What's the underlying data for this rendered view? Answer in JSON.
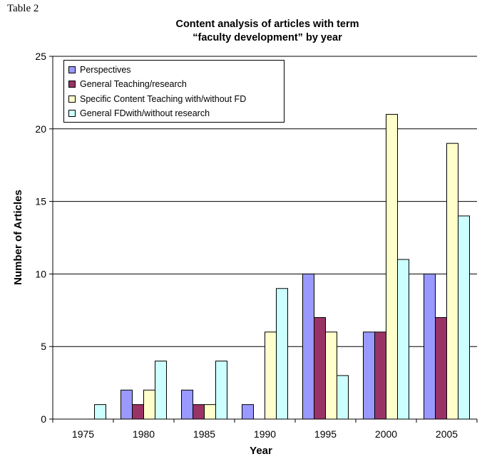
{
  "page_label": "Table 2",
  "chart_data": {
    "type": "bar",
    "title_line1": "Content analysis of articles with term",
    "title_line2": "“faculty development” by year",
    "xlabel": "Year",
    "ylabel": "Number of Articles",
    "categories": [
      "1975",
      "1980",
      "1985",
      "1990",
      "1995",
      "2000",
      "2005"
    ],
    "ylim": [
      0,
      25
    ],
    "yticks": [
      0,
      5,
      10,
      15,
      20,
      25
    ],
    "grid": true,
    "legend_position": "top-left",
    "series": [
      {
        "name": "Perspectives",
        "color": "#9999ff",
        "values": [
          0,
          2,
          2,
          1,
          10,
          6,
          10
        ]
      },
      {
        "name": "General Teaching/research",
        "color": "#993366",
        "values": [
          0,
          1,
          1,
          0,
          7,
          6,
          7
        ]
      },
      {
        "name": "Specific Content Teaching with/without FD",
        "color": "#ffffcc",
        "values": [
          0,
          2,
          1,
          6,
          6,
          21,
          19
        ]
      },
      {
        "name": "General FDwith/without research",
        "color": "#ccffff",
        "values": [
          1,
          4,
          4,
          9,
          3,
          11,
          14
        ]
      }
    ]
  }
}
